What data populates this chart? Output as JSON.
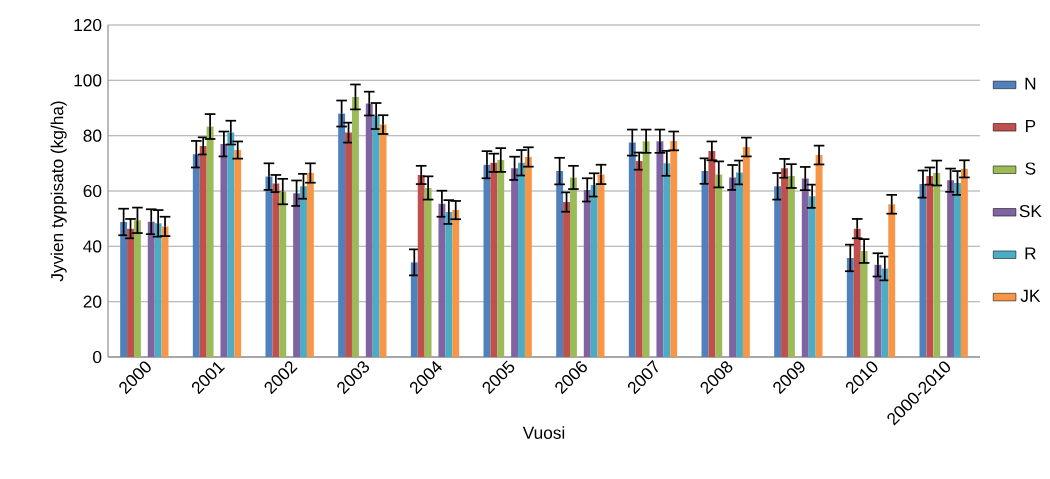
{
  "chart_data": {
    "type": "bar",
    "xlabel": "Vuosi",
    "ylabel": "Jyvien typpisato (kg/ha)",
    "categories": [
      "2000",
      "2001",
      "2002",
      "2003",
      "2004",
      "2005",
      "2006",
      "2007",
      "2008",
      "2009",
      "2010",
      "2000-2010"
    ],
    "series": [
      {
        "name": "N",
        "color": "#4f81bd",
        "values": [
          48.8,
          73.3,
          65.2,
          88.0,
          34.2,
          69.5,
          67.2,
          77.5,
          67.2,
          61.7,
          35.8,
          62.5
        ],
        "errors": [
          4.8,
          4.8,
          4.8,
          4.7,
          4.7,
          4.9,
          4.8,
          4.7,
          4.6,
          4.8,
          4.8,
          4.9
        ]
      },
      {
        "name": "P",
        "color": "#c0504d",
        "values": [
          46.4,
          76.3,
          62.7,
          81.1,
          65.8,
          70.2,
          56.0,
          70.8,
          74.5,
          68.2,
          46.4,
          65.4
        ],
        "errors": [
          3.5,
          3.1,
          3.1,
          3.6,
          3.3,
          3.3,
          3.5,
          3.1,
          3.4,
          3.4,
          3.5,
          3.1
        ]
      },
      {
        "name": "S",
        "color": "#9bbb59",
        "values": [
          49.4,
          83.3,
          59.8,
          94.0,
          61.1,
          71.2,
          64.9,
          78.0,
          66.0,
          65.4,
          38.3,
          66.5
        ],
        "errors": [
          4.6,
          4.5,
          4.6,
          4.5,
          4.2,
          4.3,
          4.2,
          4.2,
          4.7,
          4.3,
          4.3,
          4.5
        ]
      },
      {
        "name": "SK",
        "color": "#8064a2",
        "values": [
          48.9,
          77.0,
          59.2,
          91.6,
          55.4,
          68.2,
          60.4,
          78.0,
          64.9,
          64.5,
          33.3,
          63.9
        ],
        "errors": [
          4.5,
          4.5,
          4.6,
          4.3,
          4.7,
          4.2,
          4.2,
          4.2,
          4.5,
          4.2,
          4.2,
          4.2
        ]
      },
      {
        "name": "R",
        "color": "#4bacc6",
        "values": [
          48.3,
          81.1,
          61.7,
          87.1,
          52.4,
          70.2,
          62.2,
          70.0,
          66.7,
          58.1,
          32.0,
          62.9
        ],
        "errors": [
          4.8,
          4.3,
          4.5,
          4.7,
          4.3,
          4.6,
          4.2,
          4.5,
          4.3,
          4.2,
          4.3,
          4.3
        ]
      },
      {
        "name": "JK",
        "color": "#f79646",
        "values": [
          47.2,
          74.8,
          66.5,
          84.0,
          53.1,
          72.3,
          66.0,
          78.1,
          75.9,
          73.0,
          55.2,
          68.0
        ],
        "errors": [
          3.5,
          3.1,
          3.5,
          3.4,
          3.3,
          3.5,
          3.5,
          3.4,
          3.4,
          3.4,
          3.4,
          3.1
        ]
      }
    ],
    "ylim": [
      0,
      120
    ],
    "yticks": [
      0,
      20,
      40,
      60,
      80,
      100,
      120
    ],
    "grid": "y",
    "legend": "right"
  }
}
